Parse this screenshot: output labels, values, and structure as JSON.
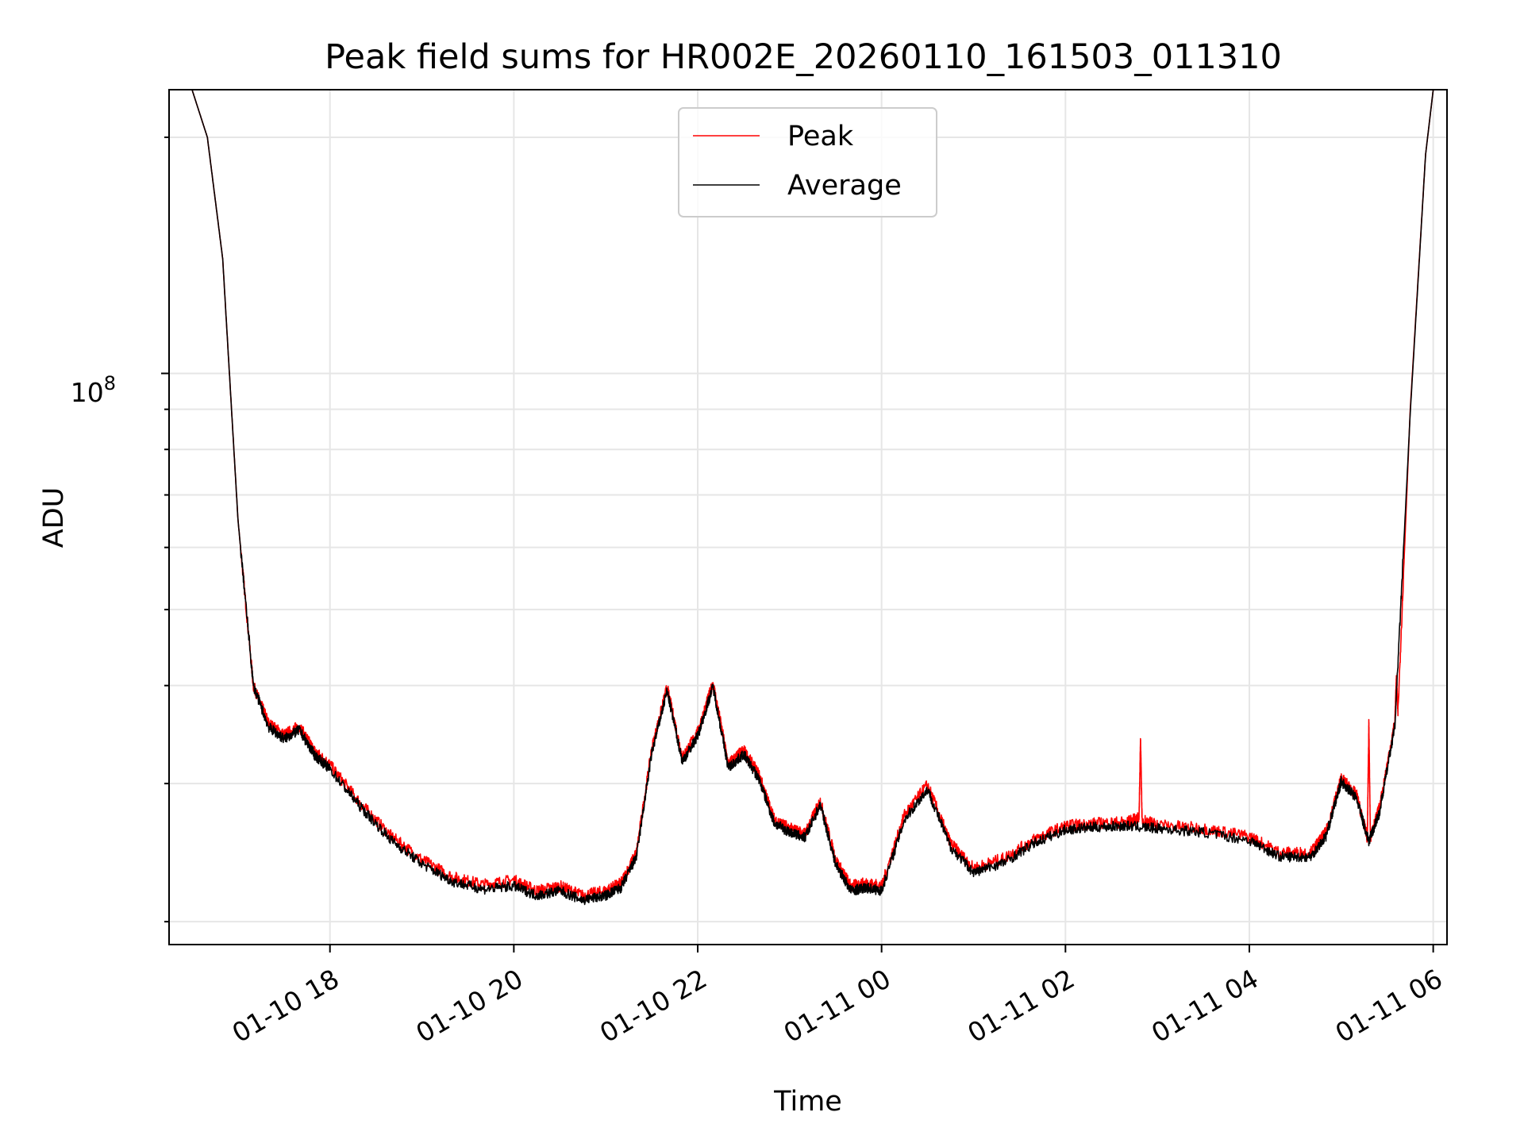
{
  "chart_data": {
    "type": "line",
    "title": "Peak field sums for HR002E_20260110_161503_011310",
    "xlabel": "Time",
    "ylabel": "ADU",
    "y_scale": "log",
    "y_major_tick": {
      "label": "10",
      "exponent": "8",
      "value": 100000000
    },
    "ylim": [
      18700000,
      230000000
    ],
    "xlim": [
      "2026-01-10 16:15",
      "2026-01-11 06:09"
    ],
    "x_tick_values": [
      "2026-01-10 18:00",
      "2026-01-10 20:00",
      "2026-01-10 22:00",
      "2026-01-11 00:00",
      "2026-01-11 02:00",
      "2026-01-11 04:00",
      "2026-01-11 06:00"
    ],
    "x_tick_labels": [
      "01-10 18",
      "01-10 20",
      "01-10 22",
      "01-11 00",
      "01-11 02",
      "01-11 04",
      "01-11 06"
    ],
    "grid": true,
    "legend_position": "top-center",
    "legend": [
      {
        "name": "Peak",
        "color": "#ff0000"
      },
      {
        "name": "Average",
        "color": "#000000"
      }
    ],
    "series": [
      {
        "name": "Peak",
        "color": "#ff0000",
        "x": [
          "2026-01-10 16:30",
          "2026-01-10 16:40",
          "2026-01-10 16:50",
          "2026-01-10 17:00",
          "2026-01-10 17:10",
          "2026-01-10 17:20",
          "2026-01-10 17:30",
          "2026-01-10 17:40",
          "2026-01-10 17:50",
          "2026-01-10 18:00",
          "2026-01-10 18:20",
          "2026-01-10 18:40",
          "2026-01-10 19:00",
          "2026-01-10 19:20",
          "2026-01-10 19:40",
          "2026-01-10 20:00",
          "2026-01-10 20:15",
          "2026-01-10 20:30",
          "2026-01-10 20:45",
          "2026-01-10 21:00",
          "2026-01-10 21:10",
          "2026-01-10 21:20",
          "2026-01-10 21:30",
          "2026-01-10 21:40",
          "2026-01-10 21:50",
          "2026-01-10 22:00",
          "2026-01-10 22:10",
          "2026-01-10 22:20",
          "2026-01-10 22:30",
          "2026-01-10 22:40",
          "2026-01-10 22:50",
          "2026-01-10 23:00",
          "2026-01-10 23:10",
          "2026-01-10 23:20",
          "2026-01-10 23:30",
          "2026-01-10 23:40",
          "2026-01-10 23:50",
          "2026-01-11 00:00",
          "2026-01-11 00:15",
          "2026-01-11 00:30",
          "2026-01-11 00:45",
          "2026-01-11 01:00",
          "2026-01-11 01:20",
          "2026-01-11 01:40",
          "2026-01-11 02:00",
          "2026-01-11 02:20",
          "2026-01-11 02:40",
          "2026-01-11 02:48",
          "2026-01-11 02:49",
          "2026-01-11 02:50",
          "2026-01-11 03:00",
          "2026-01-11 03:30",
          "2026-01-11 04:00",
          "2026-01-11 04:20",
          "2026-01-11 04:40",
          "2026-01-11 04:50",
          "2026-01-11 05:00",
          "2026-01-11 05:10",
          "2026-01-11 05:17",
          "2026-01-11 05:18",
          "2026-01-11 05:19",
          "2026-01-11 05:25",
          "2026-01-11 05:35",
          "2026-01-11 05:36",
          "2026-01-11 05:37",
          "2026-01-11 05:45",
          "2026-01-11 05:55",
          "2026-01-11 06:00"
        ],
        "y": [
          230000000,
          200000000,
          140000000,
          65000000,
          40000000,
          35800000,
          34600000,
          35500000,
          33000000,
          31700000,
          28300000,
          25700000,
          24000000,
          22800000,
          22300000,
          22600000,
          21900000,
          22200000,
          21600000,
          21900000,
          22400000,
          24500000,
          33200000,
          39800000,
          32400000,
          34900000,
          40300000,
          31800000,
          33100000,
          30800000,
          27000000,
          26300000,
          25900000,
          28500000,
          24000000,
          22200000,
          22400000,
          22200000,
          27400000,
          29900000,
          25200000,
          23400000,
          24100000,
          25500000,
          26500000,
          26700000,
          26800000,
          27100000,
          34200000,
          27000000,
          26600000,
          26300000,
          25700000,
          24500000,
          24500000,
          26000000,
          30500000,
          29000000,
          25600000,
          35800000,
          25600000,
          28000000,
          36000000,
          41000000,
          37000000,
          90000000,
          190000000,
          230000000
        ]
      },
      {
        "name": "Average",
        "color": "#000000",
        "x": [
          "2026-01-10 16:30",
          "2026-01-10 16:40",
          "2026-01-10 16:50",
          "2026-01-10 17:00",
          "2026-01-10 17:10",
          "2026-01-10 17:20",
          "2026-01-10 17:30",
          "2026-01-10 17:40",
          "2026-01-10 17:50",
          "2026-01-10 18:00",
          "2026-01-10 18:20",
          "2026-01-10 18:40",
          "2026-01-10 19:00",
          "2026-01-10 19:20",
          "2026-01-10 19:40",
          "2026-01-10 20:00",
          "2026-01-10 20:15",
          "2026-01-10 20:30",
          "2026-01-10 20:45",
          "2026-01-10 21:00",
          "2026-01-10 21:10",
          "2026-01-10 21:20",
          "2026-01-10 21:30",
          "2026-01-10 21:40",
          "2026-01-10 21:50",
          "2026-01-10 22:00",
          "2026-01-10 22:10",
          "2026-01-10 22:20",
          "2026-01-10 22:30",
          "2026-01-10 22:40",
          "2026-01-10 22:50",
          "2026-01-10 23:00",
          "2026-01-10 23:10",
          "2026-01-10 23:20",
          "2026-01-10 23:30",
          "2026-01-10 23:40",
          "2026-01-10 23:50",
          "2026-01-11 00:00",
          "2026-01-11 00:15",
          "2026-01-11 00:30",
          "2026-01-11 00:45",
          "2026-01-11 01:00",
          "2026-01-11 01:20",
          "2026-01-11 01:40",
          "2026-01-11 02:00",
          "2026-01-11 02:20",
          "2026-01-11 02:40",
          "2026-01-11 03:00",
          "2026-01-11 03:30",
          "2026-01-11 04:00",
          "2026-01-11 04:20",
          "2026-01-11 04:40",
          "2026-01-11 04:50",
          "2026-01-11 05:00",
          "2026-01-11 05:10",
          "2026-01-11 05:18",
          "2026-01-11 05:25",
          "2026-01-11 05:35",
          "2026-01-11 05:45",
          "2026-01-11 05:55",
          "2026-01-11 06:00"
        ],
        "y": [
          230000000,
          200000000,
          140000000,
          65000000,
          40000000,
          35400000,
          34200000,
          35100000,
          32600000,
          31300000,
          28000000,
          25400000,
          23700000,
          22500000,
          22000000,
          22200000,
          21600000,
          21900000,
          21300000,
          21600000,
          22100000,
          24200000,
          32800000,
          39400000,
          32000000,
          34500000,
          39900000,
          31400000,
          32700000,
          30400000,
          26700000,
          26000000,
          25600000,
          28200000,
          23700000,
          21900000,
          22100000,
          21900000,
          27000000,
          29500000,
          24900000,
          23100000,
          23800000,
          25200000,
          26200000,
          26400000,
          26500000,
          26300000,
          26000000,
          25400000,
          24200000,
          24200000,
          25700000,
          30200000,
          28700000,
          25300000,
          27600000,
          35600000,
          89000000,
          190000000,
          230000000
        ]
      }
    ]
  }
}
